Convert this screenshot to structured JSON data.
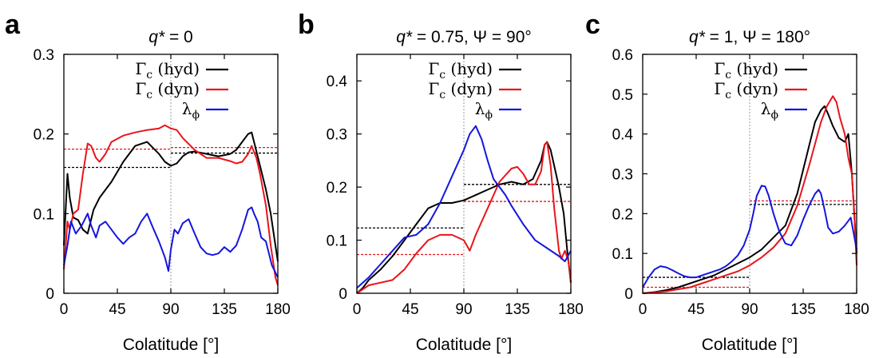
{
  "colors": {
    "hyd": "#000000",
    "dyn": "#e8141b",
    "lambda": "#1515e0"
  },
  "legend": {
    "hyd_symbol": "Γ",
    "hyd_sub": "c",
    "hyd_rest": " (hyd)",
    "dyn_symbol": "Γ",
    "dyn_sub": "c",
    "dyn_rest": " (dyn)",
    "lambda_symbol": "λ",
    "lambda_sub": "ϕ"
  },
  "chart_data": [
    {
      "type": "line",
      "panel": "a",
      "title_prefix": "q*",
      "title_rest": " = 0",
      "xlabel": "Colatitude [°]",
      "xlim": [
        0,
        180
      ],
      "ylim": [
        0,
        0.3
      ],
      "xticks": [
        0,
        45,
        90,
        135,
        180
      ],
      "yticks": [
        "0",
        "0.1",
        "0.2",
        "0.3"
      ],
      "ytick_values": [
        0,
        0.1,
        0.2,
        0.3
      ],
      "vline_x": 90,
      "series": [
        {
          "key": "hyd",
          "x": [
            0,
            3,
            5,
            8,
            12,
            16,
            20,
            25,
            30,
            40,
            50,
            60,
            70,
            80,
            85,
            90,
            95,
            100,
            105,
            110,
            120,
            130,
            140,
            145,
            150,
            155,
            158,
            160,
            165,
            170,
            174,
            177,
            180
          ],
          "y": [
            0.06,
            0.15,
            0.12,
            0.095,
            0.092,
            0.08,
            0.075,
            0.105,
            0.12,
            0.14,
            0.165,
            0.185,
            0.19,
            0.175,
            0.165,
            0.16,
            0.163,
            0.172,
            0.177,
            0.178,
            0.175,
            0.172,
            0.175,
            0.18,
            0.19,
            0.2,
            0.202,
            0.19,
            0.16,
            0.13,
            0.1,
            0.07,
            0.04
          ]
        },
        {
          "key": "dyn",
          "x": [
            0,
            3,
            5,
            8,
            12,
            16,
            20,
            23,
            27,
            30,
            35,
            40,
            50,
            60,
            70,
            80,
            85,
            90,
            95,
            100,
            110,
            120,
            130,
            140,
            145,
            150,
            155,
            158,
            162,
            165,
            170,
            174,
            178,
            180
          ],
          "y": [
            0.03,
            0.09,
            0.08,
            0.1,
            0.105,
            0.15,
            0.188,
            0.185,
            0.17,
            0.165,
            0.175,
            0.19,
            0.198,
            0.202,
            0.205,
            0.207,
            0.211,
            0.207,
            0.205,
            0.195,
            0.18,
            0.17,
            0.17,
            0.166,
            0.163,
            0.165,
            0.175,
            0.185,
            0.17,
            0.15,
            0.11,
            0.06,
            0.02,
            0.01
          ]
        },
        {
          "key": "lambda",
          "x": [
            0,
            3,
            6,
            10,
            15,
            20,
            23,
            27,
            30,
            35,
            40,
            45,
            50,
            55,
            60,
            65,
            70,
            75,
            80,
            85,
            88,
            90,
            93,
            96,
            100,
            105,
            110,
            115,
            120,
            125,
            130,
            135,
            140,
            145,
            150,
            155,
            158,
            160,
            163,
            166,
            170,
            175,
            180
          ],
          "y": [
            0.035,
            0.06,
            0.09,
            0.075,
            0.085,
            0.1,
            0.085,
            0.07,
            0.085,
            0.09,
            0.08,
            0.07,
            0.062,
            0.07,
            0.075,
            0.09,
            0.1,
            0.082,
            0.065,
            0.045,
            0.028,
            0.055,
            0.08,
            0.075,
            0.088,
            0.093,
            0.075,
            0.058,
            0.05,
            0.048,
            0.05,
            0.058,
            0.052,
            0.06,
            0.08,
            0.105,
            0.108,
            0.1,
            0.09,
            0.07,
            0.065,
            0.035,
            0.02
          ]
        }
      ],
      "means": [
        {
          "key": "hyd",
          "x0": 0,
          "x1": 90,
          "y": 0.158
        },
        {
          "key": "hyd",
          "x0": 90,
          "x1": 180,
          "y": 0.176
        },
        {
          "key": "dyn",
          "x0": 0,
          "x1": 90,
          "y": 0.181
        },
        {
          "key": "dyn",
          "x0": 90,
          "x1": 180,
          "y": 0.183
        }
      ]
    },
    {
      "type": "line",
      "panel": "b",
      "title_prefix": "q*",
      "title_rest": " = 0.75, Ψ = 90°",
      "xlabel": "Colatitude [°]",
      "xlim": [
        0,
        180
      ],
      "ylim": [
        0,
        0.45
      ],
      "xticks": [
        0,
        45,
        90,
        135,
        180
      ],
      "yticks": [
        "0",
        "0.1",
        "0.2",
        "0.3",
        "0.4"
      ],
      "ytick_values": [
        0,
        0.1,
        0.2,
        0.3,
        0.4
      ],
      "vline_x": 90,
      "series": [
        {
          "key": "hyd",
          "x": [
            0,
            5,
            10,
            20,
            30,
            40,
            50,
            60,
            70,
            80,
            90,
            100,
            110,
            120,
            130,
            140,
            148,
            155,
            158,
            160,
            163,
            166,
            170,
            174,
            177,
            180
          ],
          "y": [
            0,
            0.01,
            0.025,
            0.045,
            0.07,
            0.1,
            0.13,
            0.16,
            0.17,
            0.17,
            0.175,
            0.185,
            0.195,
            0.205,
            0.21,
            0.205,
            0.215,
            0.25,
            0.28,
            0.285,
            0.27,
            0.24,
            0.2,
            0.15,
            0.08,
            0.02
          ]
        },
        {
          "key": "dyn",
          "x": [
            0,
            10,
            20,
            30,
            40,
            50,
            60,
            70,
            80,
            90,
            95,
            100,
            110,
            120,
            130,
            135,
            140,
            145,
            150,
            155,
            158,
            160,
            163,
            166,
            170,
            172,
            175,
            178,
            180
          ],
          "y": [
            0,
            0.015,
            0.02,
            0.025,
            0.045,
            0.075,
            0.1,
            0.11,
            0.11,
            0.1,
            0.08,
            0.11,
            0.16,
            0.21,
            0.235,
            0.238,
            0.225,
            0.205,
            0.205,
            0.23,
            0.28,
            0.285,
            0.24,
            0.16,
            0.08,
            0.065,
            0.08,
            0.06,
            0.02
          ]
        },
        {
          "key": "lambda",
          "x": [
            0,
            10,
            20,
            30,
            40,
            50,
            60,
            70,
            80,
            90,
            95,
            100,
            105,
            110,
            115,
            120,
            125,
            130,
            140,
            150,
            160,
            170,
            175,
            180
          ],
          "y": [
            0.01,
            0.03,
            0.055,
            0.08,
            0.105,
            0.11,
            0.13,
            0.17,
            0.22,
            0.27,
            0.3,
            0.315,
            0.29,
            0.25,
            0.215,
            0.2,
            0.185,
            0.165,
            0.13,
            0.1,
            0.085,
            0.07,
            0.06,
            0.08
          ]
        }
      ],
      "means": [
        {
          "key": "hyd",
          "x0": 0,
          "x1": 90,
          "y": 0.123
        },
        {
          "key": "hyd",
          "x0": 90,
          "x1": 180,
          "y": 0.205
        },
        {
          "key": "dyn",
          "x0": 0,
          "x1": 90,
          "y": 0.073
        },
        {
          "key": "dyn",
          "x0": 90,
          "x1": 180,
          "y": 0.173
        }
      ]
    },
    {
      "type": "line",
      "panel": "c",
      "title_prefix": "q*",
      "title_rest": " = 1, Ψ = 180°",
      "xlabel": "Colatitude [°]",
      "xlim": [
        0,
        180
      ],
      "ylim": [
        0,
        0.6
      ],
      "xticks": [
        0,
        45,
        90,
        135,
        180
      ],
      "yticks": [
        "0",
        "0.1",
        "0.2",
        "0.3",
        "0.4",
        "0.5",
        "0.6"
      ],
      "ytick_values": [
        0,
        0.1,
        0.2,
        0.3,
        0.4,
        0.5,
        0.6
      ],
      "vline_x": 90,
      "series": [
        {
          "key": "hyd",
          "x": [
            0,
            10,
            20,
            30,
            40,
            50,
            60,
            70,
            80,
            90,
            100,
            110,
            120,
            130,
            140,
            145,
            150,
            153,
            156,
            160,
            165,
            170,
            173,
            176,
            178,
            180
          ],
          "y": [
            0,
            0.003,
            0.008,
            0.015,
            0.025,
            0.035,
            0.045,
            0.06,
            0.075,
            0.09,
            0.11,
            0.14,
            0.17,
            0.25,
            0.37,
            0.43,
            0.46,
            0.47,
            0.45,
            0.42,
            0.39,
            0.38,
            0.4,
            0.3,
            0.2,
            0.1
          ]
        },
        {
          "key": "dyn",
          "x": [
            0,
            10,
            20,
            30,
            40,
            50,
            60,
            70,
            80,
            90,
            100,
            110,
            120,
            130,
            140,
            150,
            155,
            160,
            163,
            166,
            170,
            173,
            176,
            178,
            180
          ],
          "y": [
            0,
            0.002,
            0.005,
            0.01,
            0.015,
            0.025,
            0.035,
            0.045,
            0.055,
            0.07,
            0.09,
            0.115,
            0.15,
            0.22,
            0.32,
            0.43,
            0.47,
            0.495,
            0.48,
            0.44,
            0.4,
            0.34,
            0.3,
            0.2,
            0.07
          ]
        },
        {
          "key": "lambda",
          "x": [
            0,
            5,
            10,
            15,
            20,
            25,
            30,
            35,
            40,
            45,
            50,
            55,
            60,
            65,
            70,
            75,
            80,
            85,
            90,
            93,
            96,
            100,
            103,
            106,
            110,
            115,
            120,
            125,
            130,
            135,
            140,
            145,
            148,
            150,
            153,
            156,
            160,
            165,
            170,
            175,
            180
          ],
          "y": [
            0.015,
            0.04,
            0.06,
            0.068,
            0.065,
            0.058,
            0.05,
            0.043,
            0.04,
            0.04,
            0.045,
            0.05,
            0.055,
            0.06,
            0.068,
            0.08,
            0.095,
            0.12,
            0.16,
            0.2,
            0.245,
            0.27,
            0.268,
            0.245,
            0.2,
            0.155,
            0.125,
            0.12,
            0.145,
            0.185,
            0.22,
            0.25,
            0.26,
            0.25,
            0.21,
            0.165,
            0.15,
            0.155,
            0.17,
            0.19,
            0.11
          ]
        }
      ],
      "means": [
        {
          "key": "hyd",
          "x0": 0,
          "x1": 90,
          "y": 0.04
        },
        {
          "key": "hyd",
          "x0": 90,
          "x1": 180,
          "y": 0.223
        },
        {
          "key": "dyn",
          "x0": 0,
          "x1": 90,
          "y": 0.015
        },
        {
          "key": "dyn",
          "x0": 90,
          "x1": 180,
          "y": 0.232
        }
      ]
    }
  ]
}
